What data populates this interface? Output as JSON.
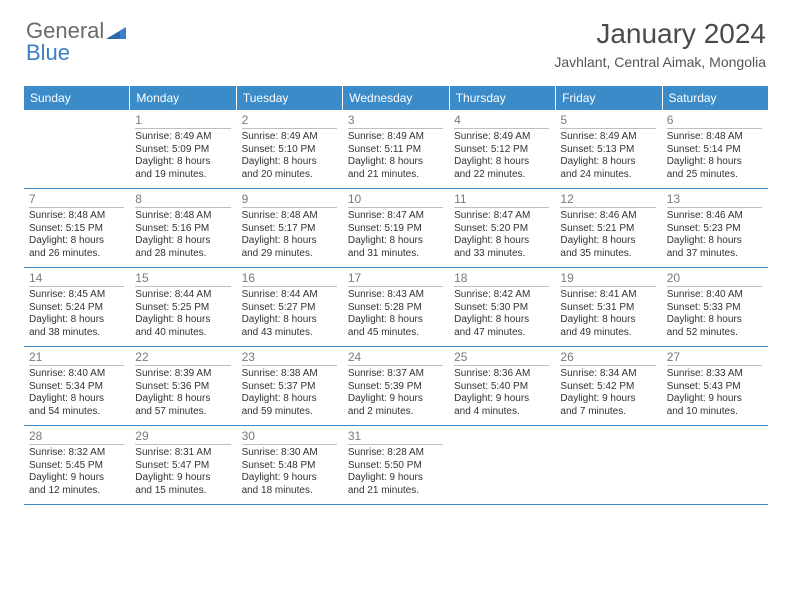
{
  "logo": {
    "text1": "General",
    "text2": "Blue"
  },
  "title": "January 2024",
  "location": "Javhlant, Central Aimak, Mongolia",
  "colors": {
    "header_bg": "#3b8bc9",
    "header_text": "#ffffff",
    "border": "#3b8bc9",
    "daynum": "#7a7a7a",
    "body_text": "#333333",
    "logo_gray": "#6b6b6b",
    "logo_blue": "#3b7fc4"
  },
  "day_headers": [
    "Sunday",
    "Monday",
    "Tuesday",
    "Wednesday",
    "Thursday",
    "Friday",
    "Saturday"
  ],
  "weeks": [
    [
      {},
      {
        "n": "1",
        "sr": "Sunrise: 8:49 AM",
        "ss": "Sunset: 5:09 PM",
        "d1": "Daylight: 8 hours",
        "d2": "and 19 minutes."
      },
      {
        "n": "2",
        "sr": "Sunrise: 8:49 AM",
        "ss": "Sunset: 5:10 PM",
        "d1": "Daylight: 8 hours",
        "d2": "and 20 minutes."
      },
      {
        "n": "3",
        "sr": "Sunrise: 8:49 AM",
        "ss": "Sunset: 5:11 PM",
        "d1": "Daylight: 8 hours",
        "d2": "and 21 minutes."
      },
      {
        "n": "4",
        "sr": "Sunrise: 8:49 AM",
        "ss": "Sunset: 5:12 PM",
        "d1": "Daylight: 8 hours",
        "d2": "and 22 minutes."
      },
      {
        "n": "5",
        "sr": "Sunrise: 8:49 AM",
        "ss": "Sunset: 5:13 PM",
        "d1": "Daylight: 8 hours",
        "d2": "and 24 minutes."
      },
      {
        "n": "6",
        "sr": "Sunrise: 8:48 AM",
        "ss": "Sunset: 5:14 PM",
        "d1": "Daylight: 8 hours",
        "d2": "and 25 minutes."
      }
    ],
    [
      {
        "n": "7",
        "sr": "Sunrise: 8:48 AM",
        "ss": "Sunset: 5:15 PM",
        "d1": "Daylight: 8 hours",
        "d2": "and 26 minutes."
      },
      {
        "n": "8",
        "sr": "Sunrise: 8:48 AM",
        "ss": "Sunset: 5:16 PM",
        "d1": "Daylight: 8 hours",
        "d2": "and 28 minutes."
      },
      {
        "n": "9",
        "sr": "Sunrise: 8:48 AM",
        "ss": "Sunset: 5:17 PM",
        "d1": "Daylight: 8 hours",
        "d2": "and 29 minutes."
      },
      {
        "n": "10",
        "sr": "Sunrise: 8:47 AM",
        "ss": "Sunset: 5:19 PM",
        "d1": "Daylight: 8 hours",
        "d2": "and 31 minutes."
      },
      {
        "n": "11",
        "sr": "Sunrise: 8:47 AM",
        "ss": "Sunset: 5:20 PM",
        "d1": "Daylight: 8 hours",
        "d2": "and 33 minutes."
      },
      {
        "n": "12",
        "sr": "Sunrise: 8:46 AM",
        "ss": "Sunset: 5:21 PM",
        "d1": "Daylight: 8 hours",
        "d2": "and 35 minutes."
      },
      {
        "n": "13",
        "sr": "Sunrise: 8:46 AM",
        "ss": "Sunset: 5:23 PM",
        "d1": "Daylight: 8 hours",
        "d2": "and 37 minutes."
      }
    ],
    [
      {
        "n": "14",
        "sr": "Sunrise: 8:45 AM",
        "ss": "Sunset: 5:24 PM",
        "d1": "Daylight: 8 hours",
        "d2": "and 38 minutes."
      },
      {
        "n": "15",
        "sr": "Sunrise: 8:44 AM",
        "ss": "Sunset: 5:25 PM",
        "d1": "Daylight: 8 hours",
        "d2": "and 40 minutes."
      },
      {
        "n": "16",
        "sr": "Sunrise: 8:44 AM",
        "ss": "Sunset: 5:27 PM",
        "d1": "Daylight: 8 hours",
        "d2": "and 43 minutes."
      },
      {
        "n": "17",
        "sr": "Sunrise: 8:43 AM",
        "ss": "Sunset: 5:28 PM",
        "d1": "Daylight: 8 hours",
        "d2": "and 45 minutes."
      },
      {
        "n": "18",
        "sr": "Sunrise: 8:42 AM",
        "ss": "Sunset: 5:30 PM",
        "d1": "Daylight: 8 hours",
        "d2": "and 47 minutes."
      },
      {
        "n": "19",
        "sr": "Sunrise: 8:41 AM",
        "ss": "Sunset: 5:31 PM",
        "d1": "Daylight: 8 hours",
        "d2": "and 49 minutes."
      },
      {
        "n": "20",
        "sr": "Sunrise: 8:40 AM",
        "ss": "Sunset: 5:33 PM",
        "d1": "Daylight: 8 hours",
        "d2": "and 52 minutes."
      }
    ],
    [
      {
        "n": "21",
        "sr": "Sunrise: 8:40 AM",
        "ss": "Sunset: 5:34 PM",
        "d1": "Daylight: 8 hours",
        "d2": "and 54 minutes."
      },
      {
        "n": "22",
        "sr": "Sunrise: 8:39 AM",
        "ss": "Sunset: 5:36 PM",
        "d1": "Daylight: 8 hours",
        "d2": "and 57 minutes."
      },
      {
        "n": "23",
        "sr": "Sunrise: 8:38 AM",
        "ss": "Sunset: 5:37 PM",
        "d1": "Daylight: 8 hours",
        "d2": "and 59 minutes."
      },
      {
        "n": "24",
        "sr": "Sunrise: 8:37 AM",
        "ss": "Sunset: 5:39 PM",
        "d1": "Daylight: 9 hours",
        "d2": "and 2 minutes."
      },
      {
        "n": "25",
        "sr": "Sunrise: 8:36 AM",
        "ss": "Sunset: 5:40 PM",
        "d1": "Daylight: 9 hours",
        "d2": "and 4 minutes."
      },
      {
        "n": "26",
        "sr": "Sunrise: 8:34 AM",
        "ss": "Sunset: 5:42 PM",
        "d1": "Daylight: 9 hours",
        "d2": "and 7 minutes."
      },
      {
        "n": "27",
        "sr": "Sunrise: 8:33 AM",
        "ss": "Sunset: 5:43 PM",
        "d1": "Daylight: 9 hours",
        "d2": "and 10 minutes."
      }
    ],
    [
      {
        "n": "28",
        "sr": "Sunrise: 8:32 AM",
        "ss": "Sunset: 5:45 PM",
        "d1": "Daylight: 9 hours",
        "d2": "and 12 minutes."
      },
      {
        "n": "29",
        "sr": "Sunrise: 8:31 AM",
        "ss": "Sunset: 5:47 PM",
        "d1": "Daylight: 9 hours",
        "d2": "and 15 minutes."
      },
      {
        "n": "30",
        "sr": "Sunrise: 8:30 AM",
        "ss": "Sunset: 5:48 PM",
        "d1": "Daylight: 9 hours",
        "d2": "and 18 minutes."
      },
      {
        "n": "31",
        "sr": "Sunrise: 8:28 AM",
        "ss": "Sunset: 5:50 PM",
        "d1": "Daylight: 9 hours",
        "d2": "and 21 minutes."
      },
      {},
      {},
      {}
    ]
  ]
}
